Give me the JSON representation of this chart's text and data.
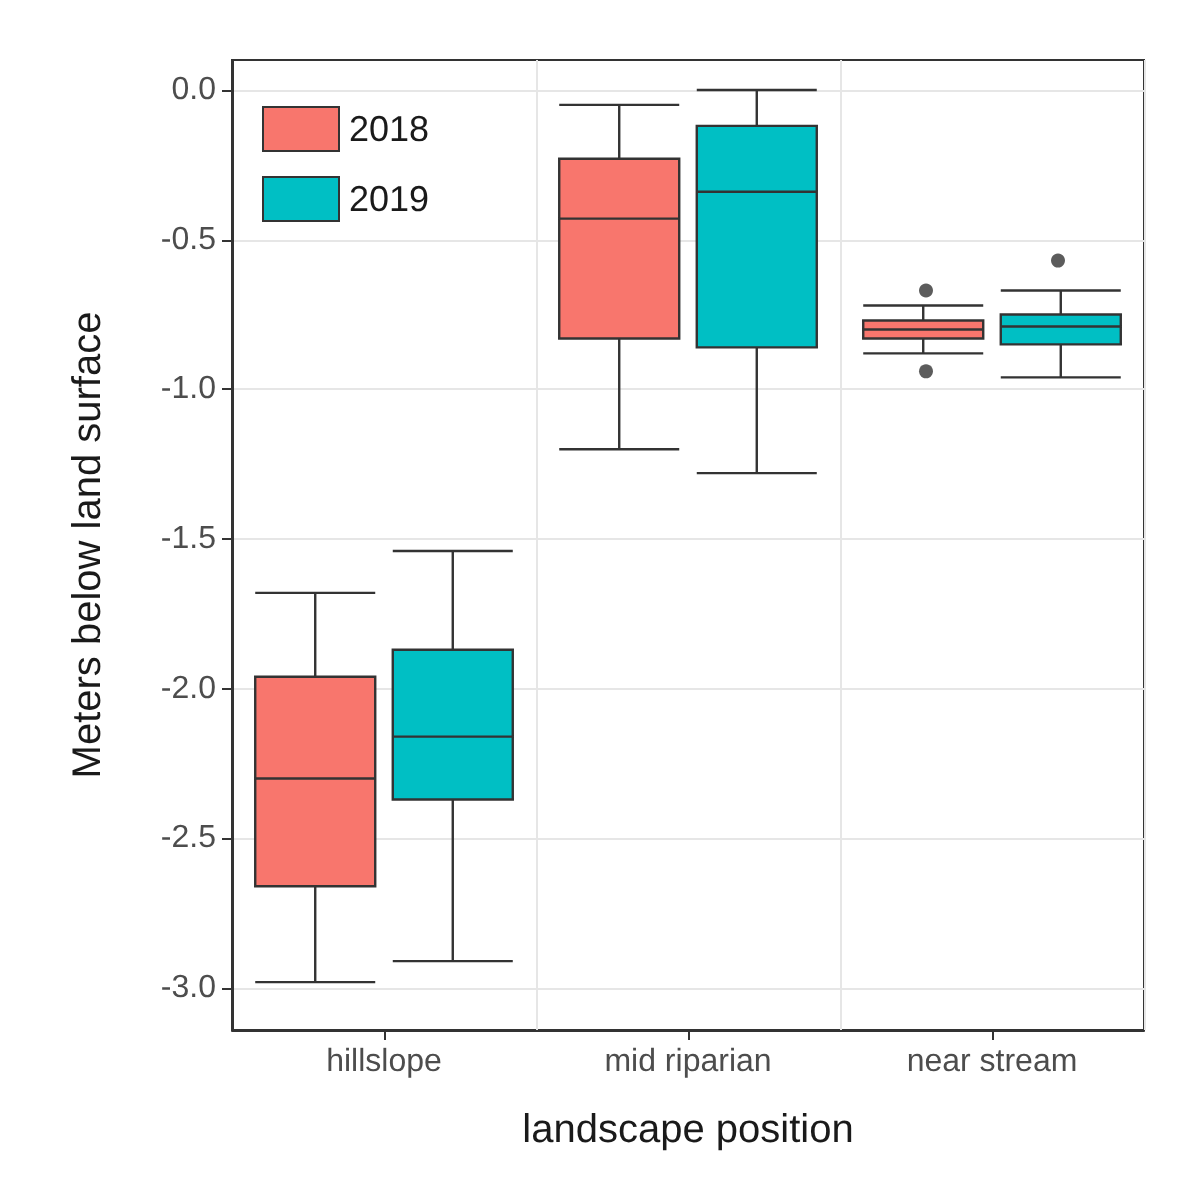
{
  "chart_data": {
    "type": "box",
    "xlabel": "landscape position",
    "ylabel": "Meters below land surface",
    "categories": [
      "hillslope",
      "mid riparian",
      "near stream"
    ],
    "series": [
      {
        "name": "2018",
        "color": "#f8766d",
        "boxes": [
          {
            "low": -2.98,
            "q1": -2.66,
            "median": -2.3,
            "q3": -1.96,
            "high": -1.68
          },
          {
            "low": -1.2,
            "q1": -0.83,
            "median": -0.43,
            "q3": -0.23,
            "high": -0.05
          },
          {
            "low": -0.88,
            "q1": -0.83,
            "median": -0.8,
            "q3": -0.77,
            "high": -0.72,
            "outliers": [
              -0.67,
              -0.94
            ]
          }
        ]
      },
      {
        "name": "2019",
        "color": "#00bfc4",
        "boxes": [
          {
            "low": -2.91,
            "q1": -2.37,
            "median": -2.16,
            "q3": -1.87,
            "high": -1.54
          },
          {
            "low": -1.28,
            "q1": -0.86,
            "median": -0.34,
            "q3": -0.12,
            "high": 0.0
          },
          {
            "low": -0.96,
            "q1": -0.85,
            "median": -0.79,
            "q3": -0.75,
            "high": -0.67,
            "outliers": [
              -0.57
            ]
          }
        ]
      }
    ],
    "ylim": [
      -3.14,
      0.1
    ],
    "yticks": [
      {
        "value": -3,
        "label": "-3.0"
      },
      -2.5,
      {
        "value": -2,
        "label": "-2.0"
      },
      -1.5,
      {
        "value": -1,
        "label": "-1.0"
      },
      -0.5,
      {
        "value": 0,
        "label": "0.0"
      }
    ],
    "grid": true,
    "legend": "top left"
  }
}
